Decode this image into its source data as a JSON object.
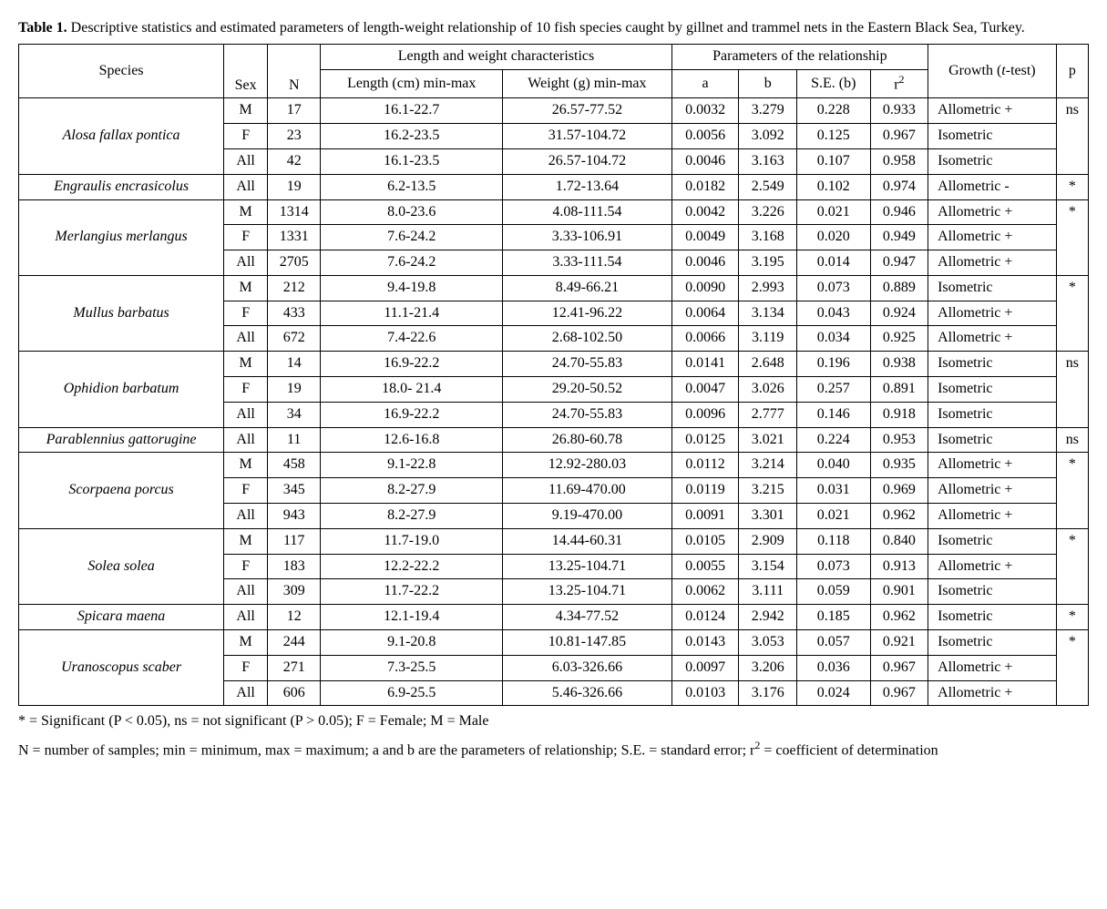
{
  "caption_bold": "Table 1.",
  "caption_text": " Descriptive statistics and estimated parameters of length-weight relationship of 10 fish species caught by gillnet and trammel nets in the Eastern Black Sea, Turkey.",
  "headers": {
    "species": "Species",
    "sex": "Sex",
    "n": "N",
    "lw_group": "Length and  weight characteristics",
    "length": "Length (cm) min-max",
    "weight": "Weight (g) min-max",
    "params_group": "Parameters of the relationship",
    "a": "a",
    "b": "b",
    "se": "S.E. (b)",
    "r2_pre": "r",
    "r2_sup": "2",
    "growth_pre": "Growth (",
    "growth_it": "t",
    "growth_post": "-test)",
    "p": "p"
  },
  "rows": [
    {
      "species": "Alosa fallax pontica",
      "span": 3,
      "sex": "M",
      "n": "17",
      "len": "16.1-22.7",
      "wt": "26.57-77.52",
      "a": "0.0032",
      "b": "3.279",
      "se": "0.228",
      "r2": "0.933",
      "growth": "Allometric +",
      "p": "ns",
      "pspan": 3
    },
    {
      "sex": "F",
      "n": "23",
      "len": "16.2-23.5",
      "wt": "31.57-104.72",
      "a": "0.0056",
      "b": "3.092",
      "se": "0.125",
      "r2": "0.967",
      "growth": "Isometric"
    },
    {
      "sex": "All",
      "n": "42",
      "len": "16.1-23.5",
      "wt": "26.57-104.72",
      "a": "0.0046",
      "b": "3.163",
      "se": "0.107",
      "r2": "0.958",
      "growth": "Isometric"
    },
    {
      "species": "Engraulis encrasicolus",
      "span": 1,
      "sex": "All",
      "n": "19",
      "len": "6.2-13.5",
      "wt": "1.72-13.64",
      "a": "0.0182",
      "b": "2.549",
      "se": "0.102",
      "r2": "0.974",
      "growth": "Allometric -",
      "p": "*",
      "pspan": 1
    },
    {
      "species": "Merlangius merlangus",
      "span": 3,
      "sex": "M",
      "n": "1314",
      "len": "8.0-23.6",
      "wt": "4.08-111.54",
      "a": "0.0042",
      "b": "3.226",
      "se": "0.021",
      "r2": "0.946",
      "growth": "Allometric +",
      "p": "*",
      "pspan": 3
    },
    {
      "sex": "F",
      "n": "1331",
      "len": "7.6-24.2",
      "wt": "3.33-106.91",
      "a": "0.0049",
      "b": "3.168",
      "se": "0.020",
      "r2": "0.949",
      "growth": "Allometric +"
    },
    {
      "sex": "All",
      "n": "2705",
      "len": "7.6-24.2",
      "wt": "3.33-111.54",
      "a": "0.0046",
      "b": "3.195",
      "se": "0.014",
      "r2": "0.947",
      "growth": "Allometric +"
    },
    {
      "species": "Mullus barbatus",
      "span": 3,
      "sex": "M",
      "n": "212",
      "len": "9.4-19.8",
      "wt": "8.49-66.21",
      "a": "0.0090",
      "b": "2.993",
      "se": "0.073",
      "r2": "0.889",
      "growth": "Isometric",
      "p": "*",
      "pspan": 3
    },
    {
      "sex": "F",
      "n": "433",
      "len": "11.1-21.4",
      "wt": "12.41-96.22",
      "a": "0.0064",
      "b": "3.134",
      "se": "0.043",
      "r2": "0.924",
      "growth": "Allometric +"
    },
    {
      "sex": "All",
      "n": "672",
      "len": "7.4-22.6",
      "wt": "2.68-102.50",
      "a": "0.0066",
      "b": "3.119",
      "se": "0.034",
      "r2": "0.925",
      "growth": "Allometric +"
    },
    {
      "species": "Ophidion barbatum",
      "span": 3,
      "sex": "M",
      "n": "14",
      "len": "16.9-22.2",
      "wt": "24.70-55.83",
      "a": "0.0141",
      "b": "2.648",
      "se": "0.196",
      "r2": "0.938",
      "growth": "Isometric",
      "p": "ns",
      "pspan": 3
    },
    {
      "sex": "F",
      "n": "19",
      "len": "18.0- 21.4",
      "wt": "29.20-50.52",
      "a": "0.0047",
      "b": "3.026",
      "se": "0.257",
      "r2": "0.891",
      "growth": "Isometric"
    },
    {
      "sex": "All",
      "n": "34",
      "len": "16.9-22.2",
      "wt": "24.70-55.83",
      "a": "0.0096",
      "b": "2.777",
      "se": "0.146",
      "r2": "0.918",
      "growth": "Isometric"
    },
    {
      "species": "Parablennius gattorugine",
      "span": 1,
      "sex": "All",
      "n": "11",
      "len": "12.6-16.8",
      "wt": "26.80-60.78",
      "a": "0.0125",
      "b": "3.021",
      "se": "0.224",
      "r2": "0.953",
      "growth": "Isometric",
      "p": "ns",
      "pspan": 1
    },
    {
      "species": "Scorpaena porcus",
      "span": 3,
      "sex": "M",
      "n": "458",
      "len": "9.1-22.8",
      "wt": "12.92-280.03",
      "a": "0.0112",
      "b": "3.214",
      "se": "0.040",
      "r2": "0.935",
      "growth": "Allometric +",
      "p": "*",
      "pspan": 3
    },
    {
      "sex": "F",
      "n": "345",
      "len": "8.2-27.9",
      "wt": "11.69-470.00",
      "a": "0.0119",
      "b": "3.215",
      "se": "0.031",
      "r2": "0.969",
      "growth": "Allometric +"
    },
    {
      "sex": "All",
      "n": "943",
      "len": "8.2-27.9",
      "wt": "9.19-470.00",
      "a": "0.0091",
      "b": "3.301",
      "se": "0.021",
      "r2": "0.962",
      "growth": "Allometric +"
    },
    {
      "species": "Solea solea",
      "span": 3,
      "sex": "M",
      "n": "117",
      "len": "11.7-19.0",
      "wt": "14.44-60.31",
      "a": "0.0105",
      "b": "2.909",
      "se": "0.118",
      "r2": "0.840",
      "growth": "Isometric",
      "p": "*",
      "pspan": 3
    },
    {
      "sex": "F",
      "n": "183",
      "len": "12.2-22.2",
      "wt": "13.25-104.71",
      "a": "0.0055",
      "b": "3.154",
      "se": "0.073",
      "r2": "0.913",
      "growth": "Allometric +"
    },
    {
      "sex": "All",
      "n": "309",
      "len": "11.7-22.2",
      "wt": "13.25-104.71",
      "a": "0.0062",
      "b": "3.111",
      "se": "0.059",
      "r2": "0.901",
      "growth": "Isometric"
    },
    {
      "species": "Spicara maena",
      "span": 1,
      "sex": "All",
      "n": "12",
      "len": "12.1-19.4",
      "wt": "4.34-77.52",
      "a": "0.0124",
      "b": "2.942",
      "se": "0.185",
      "r2": "0.962",
      "growth": "Isometric",
      "p": "*",
      "pspan": 1
    },
    {
      "species": "Uranoscopus scaber",
      "span": 3,
      "sex": "M",
      "n": "244",
      "len": "9.1-20.8",
      "wt": "10.81-147.85",
      "a": "0.0143",
      "b": "3.053",
      "se": "0.057",
      "r2": "0.921",
      "growth": "Isometric",
      "p": "*",
      "pspan": 3
    },
    {
      "sex": "F",
      "n": "271",
      "len": "7.3-25.5",
      "wt": "6.03-326.66",
      "a": "0.0097",
      "b": "3.206",
      "se": "0.036",
      "r2": "0.967",
      "growth": "Allometric +"
    },
    {
      "sex": "All",
      "n": "606",
      "len": "6.9-25.5",
      "wt": "5.46-326.66",
      "a": "0.0103",
      "b": "3.176",
      "se": "0.024",
      "r2": "0.967",
      "growth": "Allometric +"
    }
  ],
  "footnote1": "* = Significant (P < 0.05), ns =  not significant (P > 0.05); F = Female; M = Male",
  "footnote2_pre": "N = number of samples; min = minimum, max = maximum; a and b are the parameters of relationship; S.E. = standard error; r",
  "footnote2_sup": "2",
  "footnote2_post": " = coefficient of determination"
}
